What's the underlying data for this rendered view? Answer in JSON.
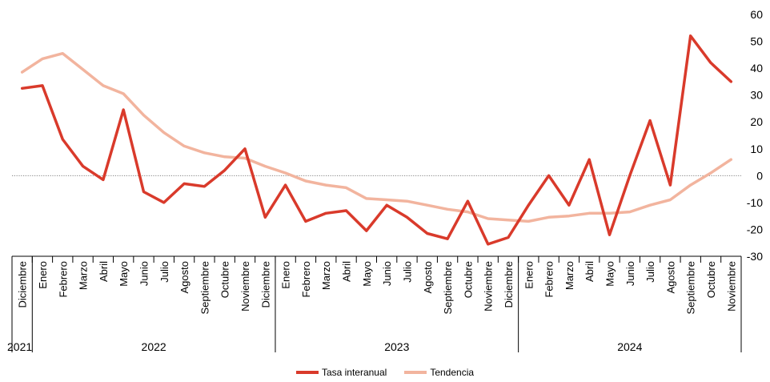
{
  "chart_data": {
    "type": "line",
    "categories": [
      "Diciembre",
      "Enero",
      "Febrero",
      "Marzo",
      "Abril",
      "Mayo",
      "Junio",
      "Julio",
      "Agosto",
      "Septiembre",
      "Octubre",
      "Noviembre",
      "Diciembre",
      "Enero",
      "Febrero",
      "Marzo",
      "Abril",
      "Mayo",
      "Junio",
      "Julio",
      "Agosto",
      "Septiembre",
      "Octubre",
      "Noviembre",
      "Diciembre",
      "Enero",
      "Febrero",
      "Marzo",
      "Abril",
      "Mayo",
      "Junio",
      "Julio",
      "Agosto",
      "Septiembre",
      "Octubre",
      "Noviembre"
    ],
    "year_groups": [
      {
        "label": "2021",
        "count": 1
      },
      {
        "label": "2022",
        "count": 12
      },
      {
        "label": "2023",
        "count": 12
      },
      {
        "label": "2024",
        "count": 11
      }
    ],
    "series": [
      {
        "name": "Tasa interanual",
        "color": "#d93a2b",
        "values": [
          32.5,
          33.5,
          13.5,
          3.5,
          -1.5,
          24.5,
          -6,
          -10,
          -3,
          -4,
          2,
          10,
          -15.5,
          -3.5,
          -17,
          -14,
          -13,
          -20.5,
          -11,
          -15.5,
          -21.5,
          -23.5,
          -9.5,
          -25.5,
          -23,
          -11,
          0,
          -11,
          6,
          -22,
          0,
          20.5,
          -3.5,
          52,
          42,
          35
        ]
      },
      {
        "name": "Tendencia",
        "color": "#f2b49e",
        "values": [
          38.5,
          43.5,
          45.5,
          39.5,
          33.5,
          30.5,
          22.5,
          16,
          11,
          8.5,
          7,
          6.5,
          3.5,
          1,
          -2,
          -3.5,
          -4.5,
          -8.5,
          -9,
          -9.5,
          -11,
          -12.5,
          -13.5,
          -16,
          -16.5,
          -17,
          -15.5,
          -15,
          -14,
          -14,
          -13.5,
          -11,
          -9,
          -3.5,
          1,
          6
        ]
      }
    ],
    "ylim": [
      -30,
      60
    ],
    "yticks": [
      "60",
      "50",
      "40",
      "30",
      "20",
      "10",
      "0",
      "-10",
      "-20",
      "-30"
    ],
    "y_axis_side": "right",
    "zero_line": "dotted",
    "grid": false,
    "legend_position": "bottom",
    "title": "",
    "xlabel": "",
    "ylabel": ""
  }
}
